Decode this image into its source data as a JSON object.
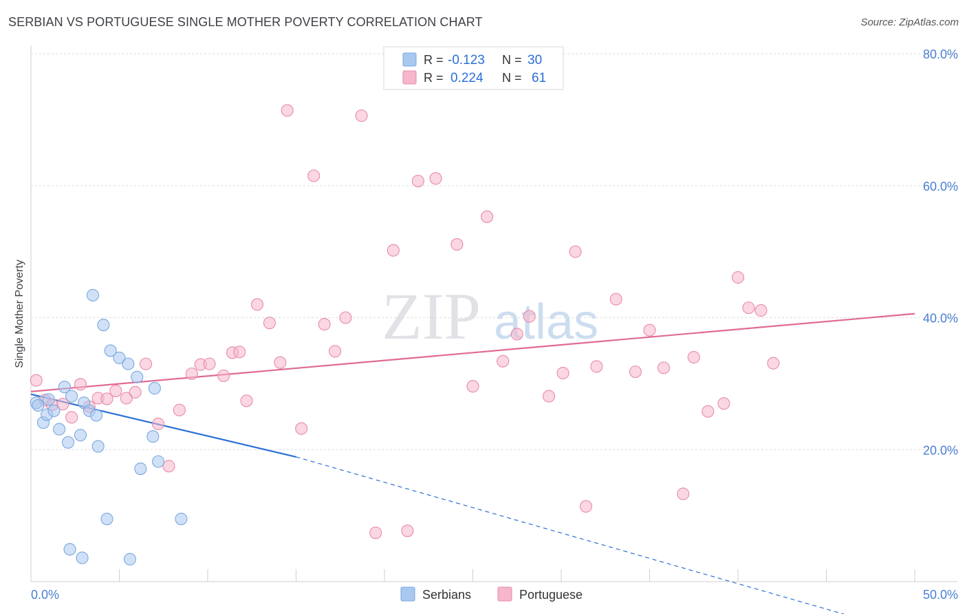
{
  "title": "SERBIAN VS PORTUGUESE SINGLE MOTHER POVERTY CORRELATION CHART",
  "source": "Source: ZipAtlas.com",
  "watermark": {
    "zip": "ZIP",
    "atlas": "atlas"
  },
  "colors": {
    "serbian_fill": "#a9c8f0",
    "serbian_stroke": "#7aa7dd",
    "serbian_line": "#2a6fd6",
    "portuguese_fill": "#f6b6cb",
    "portuguese_stroke": "#e98aa8",
    "portuguese_line": "#e06a93",
    "tick_label": "#4a7fd0",
    "grid": "#dddddd"
  },
  "legend_box": [
    {
      "r_label": "R =",
      "r_value": "-0.123",
      "n_label": "N =",
      "n_value": "30"
    },
    {
      "r_label": "R =",
      "r_value": "0.224",
      "n_label": "N =",
      "n_value": "61"
    }
  ],
  "chart_data": {
    "type": "scatter",
    "title": "SERBIAN VS PORTUGUESE SINGLE MOTHER POVERTY CORRELATION CHART",
    "xlabel": "",
    "ylabel": "Single Mother Poverty",
    "xlim": [
      0,
      50
    ],
    "ylim": [
      0,
      80
    ],
    "x_tick_labels": [
      "0.0%",
      "50.0%"
    ],
    "y_tick_values": [
      20,
      40,
      60,
      80
    ],
    "y_tick_labels": [
      "20.0%",
      "40.0%",
      "60.0%",
      "80.0%"
    ],
    "legend": [
      "Serbians",
      "Portuguese"
    ],
    "series": [
      {
        "name": "Serbians",
        "r": -0.123,
        "n": 30,
        "trend": {
          "x0": 0,
          "y0": 28.4,
          "x1": 15,
          "y1": 18.9,
          "dash_to_x": 50,
          "dash_to_y": -8.0
        },
        "points": [
          [
            0.3,
            27.1
          ],
          [
            0.4,
            26.7
          ],
          [
            0.7,
            24.1
          ],
          [
            0.9,
            25.3
          ],
          [
            1.0,
            27.6
          ],
          [
            1.3,
            25.9
          ],
          [
            1.6,
            23.1
          ],
          [
            1.9,
            29.5
          ],
          [
            2.1,
            21.1
          ],
          [
            2.2,
            4.9
          ],
          [
            2.3,
            28.1
          ],
          [
            2.8,
            22.2
          ],
          [
            2.9,
            3.6
          ],
          [
            3.0,
            27.1
          ],
          [
            3.3,
            25.9
          ],
          [
            3.5,
            43.4
          ],
          [
            3.7,
            25.2
          ],
          [
            3.8,
            20.5
          ],
          [
            4.1,
            38.9
          ],
          [
            4.3,
            9.5
          ],
          [
            4.5,
            35.0
          ],
          [
            5.0,
            33.9
          ],
          [
            5.5,
            33.0
          ],
          [
            5.6,
            3.4
          ],
          [
            6.0,
            31.0
          ],
          [
            6.2,
            17.1
          ],
          [
            6.9,
            22.0
          ],
          [
            7.0,
            29.3
          ],
          [
            7.2,
            18.2
          ],
          [
            8.5,
            9.5
          ]
        ]
      },
      {
        "name": "Portuguese",
        "r": 0.224,
        "n": 61,
        "trend": {
          "x0": 0,
          "y0": 28.8,
          "x1": 50,
          "y1": 40.6
        },
        "points": [
          [
            0.3,
            30.5
          ],
          [
            0.8,
            27.5
          ],
          [
            1.2,
            26.8
          ],
          [
            1.8,
            26.9
          ],
          [
            2.3,
            24.9
          ],
          [
            2.8,
            29.9
          ],
          [
            3.3,
            26.5
          ],
          [
            3.8,
            27.8
          ],
          [
            4.3,
            27.7
          ],
          [
            4.8,
            28.9
          ],
          [
            5.4,
            27.8
          ],
          [
            5.9,
            28.7
          ],
          [
            6.5,
            33.0
          ],
          [
            7.2,
            23.9
          ],
          [
            7.8,
            17.5
          ],
          [
            8.4,
            26.0
          ],
          [
            9.1,
            31.5
          ],
          [
            9.6,
            32.9
          ],
          [
            10.1,
            33.0
          ],
          [
            10.9,
            31.2
          ],
          [
            11.4,
            34.7
          ],
          [
            11.8,
            34.8
          ],
          [
            12.2,
            27.4
          ],
          [
            12.8,
            42.0
          ],
          [
            13.5,
            39.2
          ],
          [
            14.1,
            33.2
          ],
          [
            14.5,
            71.4
          ],
          [
            15.3,
            23.2
          ],
          [
            16.0,
            61.5
          ],
          [
            16.6,
            39.0
          ],
          [
            17.2,
            34.9
          ],
          [
            17.8,
            40.0
          ],
          [
            18.7,
            70.6
          ],
          [
            19.5,
            7.4
          ],
          [
            20.5,
            50.2
          ],
          [
            21.3,
            7.7
          ],
          [
            21.9,
            60.7
          ],
          [
            22.9,
            61.1
          ],
          [
            24.1,
            51.1
          ],
          [
            25.0,
            29.6
          ],
          [
            25.8,
            55.3
          ],
          [
            26.7,
            33.4
          ],
          [
            27.5,
            37.5
          ],
          [
            28.2,
            40.2
          ],
          [
            29.3,
            28.1
          ],
          [
            30.1,
            31.6
          ],
          [
            30.8,
            50.0
          ],
          [
            31.4,
            11.4
          ],
          [
            32.0,
            32.6
          ],
          [
            33.1,
            42.8
          ],
          [
            34.2,
            31.8
          ],
          [
            35.0,
            38.1
          ],
          [
            35.8,
            32.4
          ],
          [
            36.9,
            13.3
          ],
          [
            37.5,
            34.0
          ],
          [
            38.3,
            25.8
          ],
          [
            39.2,
            27.0
          ],
          [
            40.0,
            46.1
          ],
          [
            40.6,
            41.5
          ],
          [
            41.3,
            41.1
          ],
          [
            42.0,
            33.1
          ]
        ]
      }
    ]
  }
}
